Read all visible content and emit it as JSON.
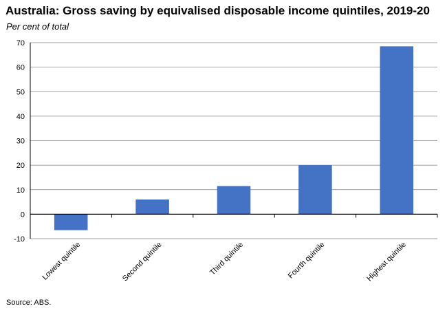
{
  "header": {
    "title": "Australia: Gross saving by equivalised disposable income quintiles, 2019-20",
    "subtitle": "Per cent of total"
  },
  "footer": {
    "source": "Source: ABS."
  },
  "chart_data": {
    "type": "bar",
    "title": "Australia: Gross saving by equivalised disposable income quintiles, 2019-20",
    "subtitle": "Per cent of total",
    "categories": [
      "Lowest quintile",
      "Second quintile",
      "Third quintile",
      "Fourth quintile",
      "Highest quintile"
    ],
    "values": [
      -6.5,
      6,
      11.5,
      20,
      68.5
    ],
    "ylim": [
      -10,
      70
    ],
    "yticks": [
      -10,
      0,
      10,
      20,
      30,
      40,
      50,
      60,
      70
    ],
    "xlabel": "",
    "ylabel": "",
    "grid": true,
    "bar_color": "#4472C4",
    "grid_color": "#808080"
  }
}
